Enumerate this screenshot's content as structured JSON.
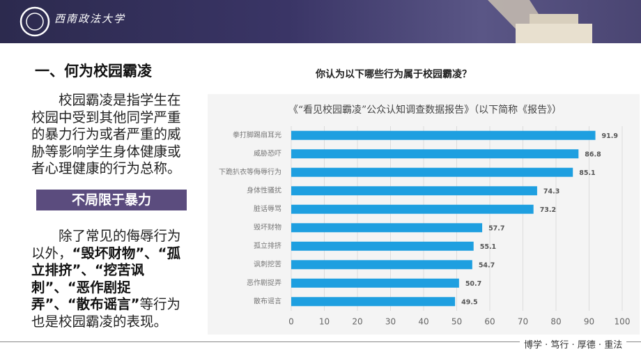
{
  "header": {
    "logo": "西南政法大学"
  },
  "section": {
    "title": "一、何为校园霸凌",
    "definition": "校园霸凌是指学生在校园中受到其他同学严重的暴力行为或者严重的威胁等影响学生身体健康或者心理健康的行为总称。",
    "highlight": "不局限于暴力",
    "examples": [
      "除了常见的侮辱行为以外，",
      "“毁坏财物”、“孤立排挤”、“挖苦讽刺”、“恶作剧捉弄”、“散布谣言”",
      "等行为也是校园霸凌的表现。"
    ]
  },
  "question": "你认为以下哪些行为属于校园霸凌？",
  "chart_data": {
    "type": "bar",
    "orientation": "horizontal",
    "title": "《“看见校园霸凌”公众认知调查数据报告》（以下简称《报告》）",
    "categories": [
      "拳打脚踢扇耳光",
      "威胁恐吓",
      "下跪扒衣等侮辱行为",
      "身体性骚扰",
      "脏话辱骂",
      "毁坏财物",
      "孤立排挤",
      "讽刺挖苦",
      "恶作剧捉弄",
      "散布谣言"
    ],
    "values": [
      91.9,
      86.8,
      85.1,
      74.3,
      73.2,
      57.7,
      55.1,
      54.7,
      50.7,
      49.5
    ],
    "color": "#1e9fe0",
    "xlim": [
      0,
      100
    ],
    "xticks": [
      0,
      10,
      20,
      30,
      40,
      50,
      60,
      70,
      80,
      90,
      100
    ],
    "grid": true
  },
  "footer": {
    "motto": "博学 · 笃行 · 厚德 · 重法"
  }
}
